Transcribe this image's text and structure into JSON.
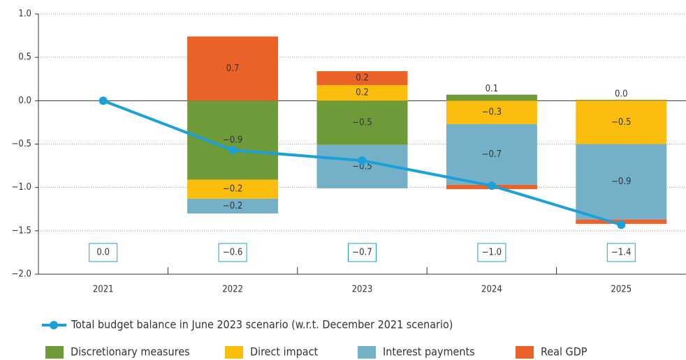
{
  "chart_data": {
    "type": "bar",
    "categories": [
      "2021",
      "2022",
      "2023",
      "2024",
      "2025"
    ],
    "series": [
      {
        "name": "Discretionary measures",
        "color": "#6f9a3a",
        "values": [
          null,
          -0.91,
          -0.51,
          0.07,
          0.01
        ],
        "value_labels": [
          null,
          "−0.9",
          "−0.5",
          "0.1",
          "0.0"
        ]
      },
      {
        "name": "Direct impact",
        "color": "#fbbe0e",
        "values": [
          null,
          -0.22,
          0.18,
          -0.27,
          -0.5
        ],
        "value_labels": [
          null,
          "−0.2",
          "0.2",
          "−0.3",
          "−0.5"
        ]
      },
      {
        "name": "Interest payments",
        "color": "#74b1c8",
        "values": [
          null,
          -0.17,
          -0.5,
          -0.7,
          -0.87
        ],
        "value_labels": [
          null,
          "−0.2",
          "−0.5",
          "−0.7",
          "−0.9"
        ]
      },
      {
        "name": "Real GDP",
        "color": "#ea6228",
        "values": [
          null,
          0.74,
          0.16,
          -0.05,
          -0.05
        ],
        "value_labels": [
          null,
          "0.7",
          "0.2",
          null,
          null
        ]
      },
      {
        "name": "Total budget balance in June 2023 scenario (w.r.t. December 2021 scenario)",
        "type": "line",
        "color": "#1ba1d8",
        "values": [
          0.0,
          -0.57,
          -0.69,
          -0.98,
          -1.43
        ],
        "value_labels": [
          "0.0",
          "−0.6",
          "−0.7",
          "−1.0",
          "−1.4"
        ]
      }
    ],
    "ylim": [
      -2.0,
      1.0
    ],
    "yticks": [
      {
        "value": -2.0,
        "label": "−2.0"
      },
      {
        "value": -1.5,
        "label": "−1.5"
      },
      {
        "value": -1.0,
        "label": "−1.0"
      },
      {
        "value": -0.5,
        "label": "−0.5"
      },
      {
        "value": 0.0,
        "label": "0.0"
      },
      0.5,
      {
        "value": 1.0,
        "label": "1.0"
      }
    ],
    "grid": true
  }
}
